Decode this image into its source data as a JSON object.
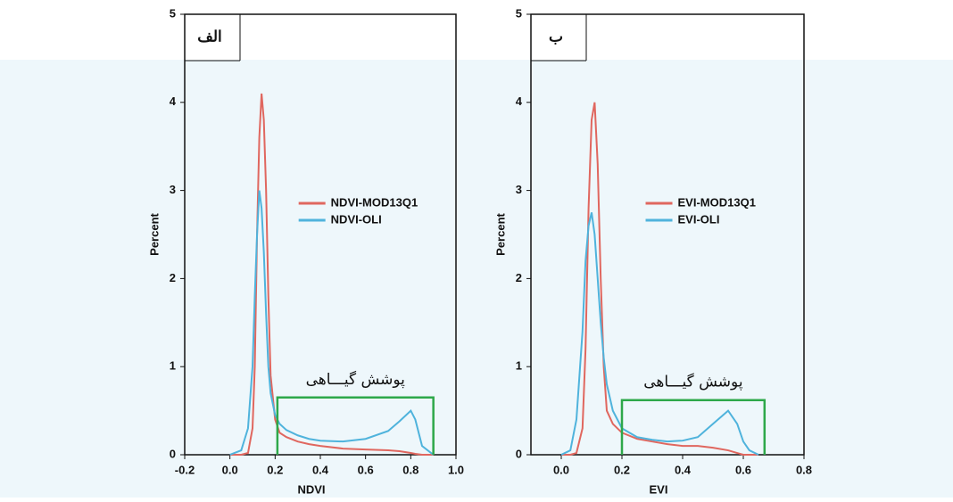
{
  "chart_data": [
    {
      "type": "line",
      "panel_label": "الف",
      "x_label": "NDVI",
      "y_label": "Percent",
      "x": [
        0.0,
        0.05,
        0.08,
        0.1,
        0.11,
        0.12,
        0.13,
        0.14,
        0.15,
        0.16,
        0.17,
        0.18,
        0.2,
        0.22,
        0.25,
        0.3,
        0.35,
        0.4,
        0.5,
        0.6,
        0.7,
        0.75,
        0.8,
        0.82,
        0.85,
        0.9
      ],
      "series": [
        {
          "name": "NDVI-MOD13Q1",
          "color": "#e0675f",
          "values": [
            0,
            0,
            0.02,
            0.3,
            1.0,
            2.5,
            3.6,
            4.1,
            3.8,
            3.0,
            1.8,
            0.9,
            0.4,
            0.25,
            0.2,
            0.15,
            0.12,
            0.1,
            0.07,
            0.06,
            0.05,
            0.04,
            0.02,
            0.01,
            0,
            0
          ]
        },
        {
          "name": "NDVI-OLI",
          "color": "#4fb3dc",
          "values": [
            0,
            0.05,
            0.3,
            1.0,
            1.8,
            2.5,
            3.0,
            2.8,
            2.3,
            1.6,
            1.0,
            0.7,
            0.45,
            0.35,
            0.28,
            0.22,
            0.18,
            0.16,
            0.15,
            0.18,
            0.27,
            0.38,
            0.5,
            0.4,
            0.1,
            0
          ]
        }
      ],
      "xlim": [
        -0.2,
        1.0
      ],
      "xticks": [
        -0.2,
        {
          "value": 0,
          "label": "0.0"
        },
        0.2,
        0.4,
        0.6,
        0.8,
        {
          "value": 1,
          "label": "1.0"
        }
      ],
      "ylim": [
        0,
        5
      ],
      "yticks": [
        0,
        1,
        2,
        3,
        4,
        5
      ],
      "annotation": {
        "text": "پوشش گیـــاهی",
        "x": [
          0.21,
          0.9
        ],
        "y": 0.65,
        "color": "#2ea84a"
      }
    },
    {
      "type": "line",
      "panel_label": "ب",
      "x_label": "EVI",
      "y_label": "Percent",
      "x": [
        0.0,
        0.03,
        0.05,
        0.07,
        0.08,
        0.09,
        0.1,
        0.11,
        0.12,
        0.13,
        0.14,
        0.15,
        0.17,
        0.2,
        0.25,
        0.3,
        0.35,
        0.4,
        0.45,
        0.5,
        0.55,
        0.58,
        0.6,
        0.62,
        0.65
      ],
      "series": [
        {
          "name": "EVI-MOD13Q1",
          "color": "#e0675f",
          "values": [
            0,
            0,
            0.02,
            0.3,
            1.2,
            2.8,
            3.8,
            4.0,
            3.3,
            2.0,
            1.0,
            0.5,
            0.35,
            0.25,
            0.18,
            0.15,
            0.12,
            0.1,
            0.1,
            0.08,
            0.05,
            0.02,
            0,
            0,
            0
          ]
        },
        {
          "name": "EVI-OLI",
          "color": "#4fb3dc",
          "values": [
            0,
            0.05,
            0.4,
            1.4,
            2.2,
            2.6,
            2.75,
            2.5,
            2.0,
            1.5,
            1.1,
            0.8,
            0.5,
            0.3,
            0.2,
            0.17,
            0.15,
            0.16,
            0.2,
            0.35,
            0.5,
            0.35,
            0.15,
            0.05,
            0
          ]
        }
      ],
      "xlim": [
        -0.1,
        0.8
      ],
      "xticks": [
        {
          "value": 0,
          "label": "0.0"
        },
        0.2,
        0.4,
        0.6,
        0.8
      ],
      "ylim": [
        0,
        5
      ],
      "yticks": [
        0,
        1,
        2,
        3,
        4,
        5
      ],
      "annotation": {
        "text": "پوشش گیـــاهی",
        "x": [
          0.2,
          0.67
        ],
        "y": 0.62,
        "color": "#2ea84a"
      }
    }
  ]
}
